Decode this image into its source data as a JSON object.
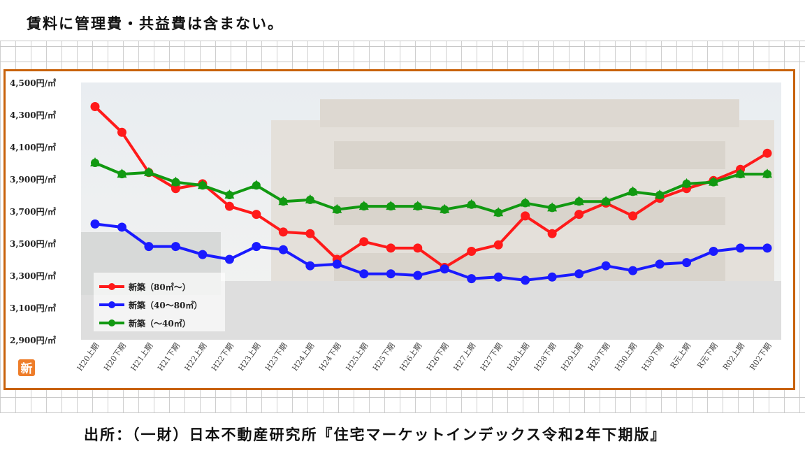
{
  "header_note": "賃料に管理費・共益費は含まない。",
  "source_note": "出所：（一財）日本不動産研究所『住宅マーケットインデックス令和2年下期版』",
  "badge_text": "新",
  "chart_data": {
    "type": "line",
    "title": "",
    "xlabel": "",
    "ylabel": "",
    "ylim": [
      2900,
      4500
    ],
    "yticks": [
      4500,
      4300,
      4100,
      3900,
      3700,
      3500,
      3300,
      3100,
      2900
    ],
    "ytick_labels": [
      "4,500円/㎡",
      "4,300円/㎡",
      "4,100円/㎡",
      "3,900円/㎡",
      "3,700円/㎡",
      "3,500円/㎡",
      "3,300円/㎡",
      "3,100円/㎡",
      "2,900円/㎡"
    ],
    "categories": [
      "H20上期",
      "H20下期",
      "H21上期",
      "H21下期",
      "H22上期",
      "H22下期",
      "H23上期",
      "H23下期",
      "H24上期",
      "H24下期",
      "H25上期",
      "H25下期",
      "H26上期",
      "H26下期",
      "H27上期",
      "H27下期",
      "H28上期",
      "H28下期",
      "H29上期",
      "H29下期",
      "H30上期",
      "H30下期",
      "R元上期",
      "R元下期",
      "R02上期",
      "R02下期"
    ],
    "legend_position": "bottom-left",
    "grid": false,
    "series": [
      {
        "name": "新築（80㎡～）",
        "color": "#ff1a1a",
        "marker": "circle",
        "values": [
          4350,
          4190,
          3940,
          3840,
          3870,
          3730,
          3680,
          3570,
          3560,
          3400,
          3510,
          3470,
          3470,
          3350,
          3450,
          3490,
          3670,
          3560,
          3680,
          3750,
          3670,
          3780,
          3840,
          3890,
          3960,
          4060
        ]
      },
      {
        "name": "新築（40～80㎡）",
        "color": "#1a1aff",
        "marker": "circle",
        "values": [
          3620,
          3600,
          3480,
          3480,
          3430,
          3400,
          3480,
          3460,
          3360,
          3370,
          3310,
          3310,
          3300,
          3340,
          3280,
          3290,
          3270,
          3290,
          3310,
          3360,
          3330,
          3370,
          3380,
          3450,
          3470,
          3470
        ]
      },
      {
        "name": "新築（～40㎡）",
        "color": "#119911",
        "marker": "triangle",
        "values": [
          4000,
          3930,
          3940,
          3880,
          3860,
          3800,
          3860,
          3760,
          3770,
          3710,
          3730,
          3730,
          3730,
          3710,
          3740,
          3690,
          3750,
          3720,
          3760,
          3760,
          3820,
          3800,
          3870,
          3880,
          3930,
          3930
        ]
      }
    ]
  }
}
